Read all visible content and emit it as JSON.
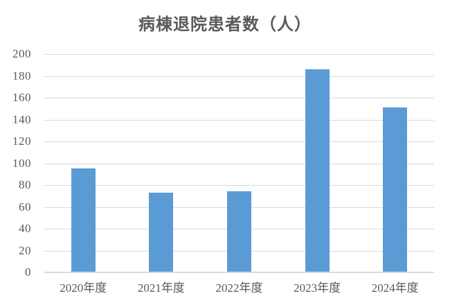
{
  "background_color": "#FFFFFF",
  "chart_data": {
    "type": "bar",
    "title": "病棟退院患者数（人）",
    "categories": [
      "2020年度",
      "2021年度",
      "2022年度",
      "2023年度",
      "2024年度"
    ],
    "values": [
      95,
      73,
      74,
      186,
      151
    ],
    "xlabel": "",
    "ylabel": "",
    "ylim": [
      0,
      200
    ],
    "ytick_step": 20,
    "ytick_labels": [
      "0",
      "20",
      "40",
      "60",
      "80",
      "100",
      "120",
      "140",
      "160",
      "180",
      "200"
    ],
    "grid": "horizontal",
    "legend": "none",
    "colors": {
      "bar": "#5B9BD5",
      "gridline": "#D9D9D9",
      "axis_line": "#D9D9D9",
      "title_text": "#595959",
      "tick_text": "#595959"
    }
  }
}
